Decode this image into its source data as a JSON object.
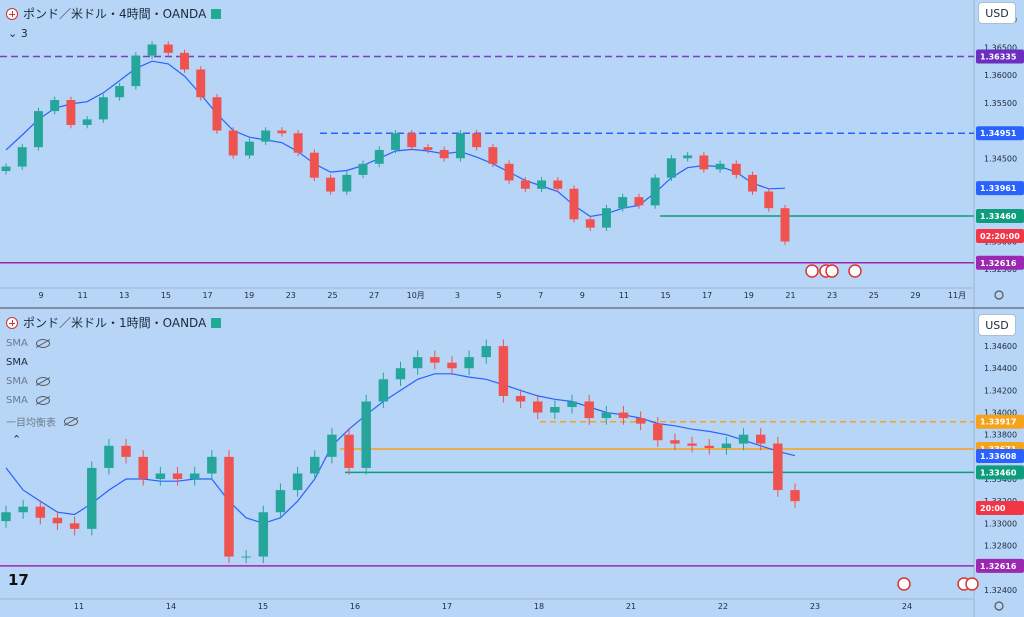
{
  "top": {
    "title": "ポンド／米ドル・4時間・OANDA",
    "subtitle": "3",
    "currency_button": "USD",
    "price_ticks": [
      "1.37000",
      "1.36500",
      "1.36000",
      "1.35500",
      "1.35000",
      "1.34500",
      "1.34000",
      "1.33500",
      "1.33000",
      "1.32500"
    ],
    "price_tags": [
      {
        "value": "1.36335",
        "color": "#6b2fbf"
      },
      {
        "value": "1.34951",
        "color": "#2962ff"
      },
      {
        "value": "1.33961",
        "color": "#2962ff"
      },
      {
        "value": "1.33460",
        "color": "#0d9d7c"
      },
      {
        "value": "02:20:00",
        "color": "#f23645"
      },
      {
        "value": "1.32616",
        "color": "#9c27b0"
      }
    ],
    "date_ticks": [
      "9",
      "11",
      "13",
      "15",
      "17",
      "19",
      "23",
      "25",
      "27",
      "10月",
      "3",
      "5",
      "7",
      "9",
      "11",
      "15",
      "17",
      "19",
      "21",
      "23",
      "25",
      "29",
      "11月"
    ]
  },
  "bottom": {
    "title": "ポンド／米ドル・1時間・OANDA",
    "currency_button": "USD",
    "indicators": [
      "SMA",
      "SMA",
      "SMA",
      "SMA",
      "一目均衡表"
    ],
    "price_ticks": [
      "1.34600",
      "1.34400",
      "1.34200",
      "1.34000",
      "1.33800",
      "1.33600",
      "1.33400",
      "1.33200",
      "1.33000",
      "1.32800",
      "1.32600",
      "1.32400"
    ],
    "price_tags": [
      {
        "value": "1.33917",
        "color": "#f7a21b"
      },
      {
        "value": "1.33671",
        "color": "#f7a21b"
      },
      {
        "value": "1.33608",
        "color": "#2962ff"
      },
      {
        "value": "1.33460",
        "color": "#0d9d7c"
      },
      {
        "value": "20:00",
        "color": "#f23645"
      },
      {
        "value": "1.32616",
        "color": "#9c27b0"
      }
    ],
    "date_ticks": [
      "11",
      "14",
      "15",
      "16",
      "17",
      "18",
      "21",
      "22",
      "23",
      "24"
    ]
  },
  "chart_data": [
    {
      "type": "candlestick",
      "title": "ポンド／米ドル・4時間・OANDA",
      "ylim": [
        1.3245,
        1.371
      ],
      "close_path": [
        1.3435,
        1.347,
        1.3535,
        1.3555,
        1.351,
        1.352,
        1.356,
        1.358,
        1.3635,
        1.3655,
        1.364,
        1.361,
        1.356,
        1.35,
        1.3455,
        1.348,
        1.35,
        1.3495,
        1.346,
        1.3415,
        1.339,
        1.342,
        1.344,
        1.3465,
        1.3495,
        1.347,
        1.3465,
        1.345,
        1.3495,
        1.347,
        1.344,
        1.341,
        1.3395,
        1.341,
        1.3395,
        1.334,
        1.3325,
        1.336,
        1.338,
        1.3365,
        1.3415,
        1.345,
        1.3455,
        1.343,
        1.344,
        1.342,
        1.339,
        1.336,
        1.33
      ],
      "sma_path": [
        1.3465,
        1.3492,
        1.352,
        1.354,
        1.3548,
        1.3552,
        1.3568,
        1.359,
        1.3612,
        1.3625,
        1.362,
        1.3598,
        1.3565,
        1.353,
        1.35,
        1.3488,
        1.3483,
        1.3478,
        1.3462,
        1.344,
        1.3425,
        1.3428,
        1.3437,
        1.345,
        1.3463,
        1.3466,
        1.3463,
        1.3458,
        1.3462,
        1.3452,
        1.344,
        1.3425,
        1.341,
        1.34,
        1.339,
        1.3365,
        1.3345,
        1.335,
        1.336,
        1.3365,
        1.3388,
        1.3415,
        1.3433,
        1.3437,
        1.3435,
        1.3425,
        1.3405,
        1.3395,
        1.3396
      ],
      "hlines": [
        1.36335,
        1.34951,
        1.3346,
        1.32616
      ]
    },
    {
      "type": "candlestick",
      "title": "ポンド／米ドル・1時間・OANDA",
      "ylim": [
        1.3238,
        1.347
      ],
      "close_path": [
        1.331,
        1.3315,
        1.3305,
        1.33,
        1.3295,
        1.335,
        1.337,
        1.336,
        1.334,
        1.3345,
        1.334,
        1.3345,
        1.336,
        1.327,
        1.327,
        1.331,
        1.333,
        1.3345,
        1.336,
        1.338,
        1.335,
        1.341,
        1.343,
        1.344,
        1.345,
        1.3445,
        1.344,
        1.345,
        1.346,
        1.3415,
        1.341,
        1.34,
        1.3405,
        1.341,
        1.3395,
        1.34,
        1.3395,
        1.339,
        1.3375,
        1.3372,
        1.337,
        1.3368,
        1.3372,
        1.338,
        1.3372,
        1.333,
        1.332
      ],
      "sma_path": [
        1.335,
        1.333,
        1.332,
        1.331,
        1.3308,
        1.3318,
        1.333,
        1.334,
        1.334,
        1.3338,
        1.3338,
        1.334,
        1.334,
        1.332,
        1.3305,
        1.33,
        1.3305,
        1.332,
        1.334,
        1.337,
        1.3385,
        1.3398,
        1.341,
        1.342,
        1.343,
        1.3435,
        1.3435,
        1.3432,
        1.343,
        1.3425,
        1.342,
        1.3415,
        1.3412,
        1.341,
        1.3405,
        1.34,
        1.3398,
        1.3395,
        1.339,
        1.3388,
        1.3385,
        1.3383,
        1.338,
        1.3375,
        1.337,
        1.3365,
        1.3361
      ],
      "hlines": [
        1.33917,
        1.33671,
        1.3346,
        1.32616
      ]
    }
  ]
}
